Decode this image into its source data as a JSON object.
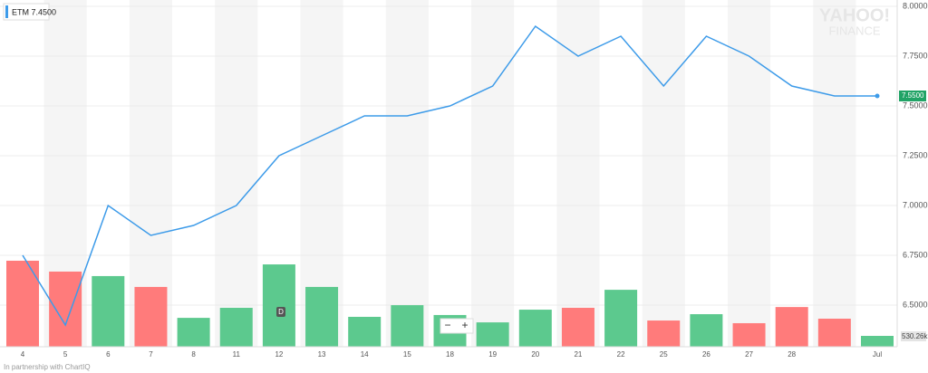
{
  "chart_data": {
    "type": "line",
    "symbol_label": "ETM 7.4500",
    "watermark": [
      "YAHOO!",
      "FINANCE"
    ],
    "credit": "In partnership with ChartIQ",
    "event_marker": "D",
    "controls": [
      "−",
      "+"
    ],
    "categories": [
      "4",
      "5",
      "6",
      "7",
      "8",
      "11",
      "12",
      "13",
      "14",
      "15",
      "18",
      "19",
      "20",
      "21",
      "22",
      "25",
      "26",
      "27",
      "28",
      null,
      "Jul"
    ],
    "series": [
      {
        "type": "line",
        "color": "#3d9be9",
        "values": [
          6.75,
          6.4,
          7.0,
          6.85,
          6.9,
          7.0,
          7.25,
          7.35,
          7.45,
          7.45,
          7.5,
          7.6,
          7.9,
          7.75,
          7.85,
          7.6,
          7.85,
          7.75,
          7.6,
          7.55,
          7.55
        ],
        "value_labels": [
          null,
          null,
          null,
          null,
          null,
          null,
          null,
          null,
          null,
          null,
          null,
          null,
          null,
          null,
          null,
          null,
          null,
          null,
          null,
          null,
          "7.5500"
        ]
      },
      {
        "type": "bar",
        "axis": "y2",
        "values": [
          4200,
          3670,
          3450,
          2920,
          1410,
          1900,
          4020,
          2920,
          1460,
          2030,
          1550,
          1190,
          1810,
          1900,
          2780,
          1280,
          1590,
          1150,
          1940,
          1370,
          530.26
        ],
        "value_labels": [
          null,
          null,
          null,
          null,
          null,
          null,
          null,
          null,
          null,
          null,
          null,
          null,
          null,
          null,
          null,
          null,
          null,
          null,
          null,
          null,
          "530.26k"
        ],
        "colors": [
          "#ff7b7b",
          "#ff7b7b",
          "#5cc98e",
          "#ff7b7b",
          "#5cc98e",
          "#5cc98e",
          "#5cc98e",
          "#5cc98e",
          "#5cc98e",
          "#5cc98e",
          "#5cc98e",
          "#5cc98e",
          "#5cc98e",
          "#ff7b7b",
          "#5cc98e",
          "#ff7b7b",
          "#5cc98e",
          "#ff7b7b",
          "#ff7b7b",
          "#ff7b7b",
          "#5cc98e"
        ]
      }
    ],
    "ylim": [
      6.2909,
      8.0
    ],
    "yticks": [
      {
        "value": 6.5,
        "label": "6.5000"
      },
      {
        "value": 6.75,
        "label": "6.7500"
      },
      {
        "value": 7,
        "label": "7.0000"
      },
      {
        "value": 7.25,
        "label": "7.2500"
      },
      {
        "value": 7.5,
        "label": "7.5000"
      },
      {
        "value": 7.75,
        "label": "7.7500"
      },
      {
        "value": 8,
        "label": "8.0000"
      }
    ],
    "y2lim": [
      0,
      16620
    ],
    "grid": true
  }
}
